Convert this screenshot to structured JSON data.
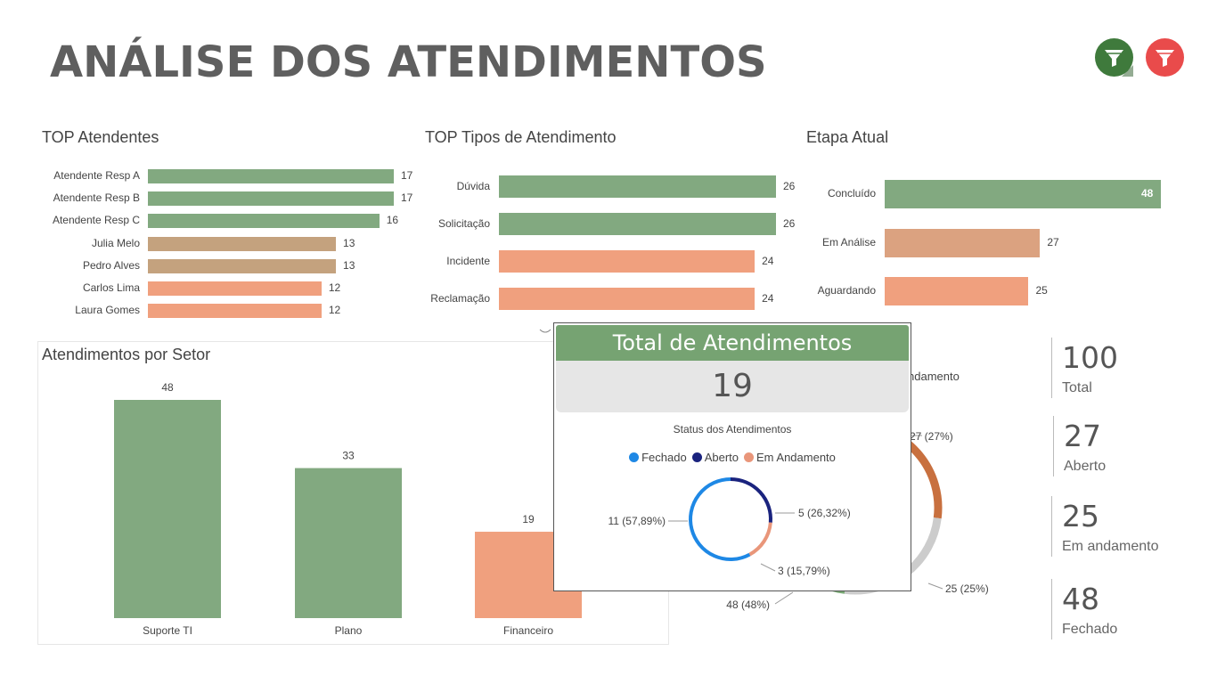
{
  "header": {
    "title": "ANÁLISE DOS ATENDIMENTOS"
  },
  "filters": [
    {
      "icon": "funnel-icon",
      "color": "#3f7a3c"
    },
    {
      "icon": "funnel-x-icon",
      "color": "#e94b4b"
    }
  ],
  "top_atendentes": {
    "title": "TOP Atendentes",
    "chart_data": {
      "type": "bar",
      "title": "TOP Atendentes",
      "categories": [
        "Atendente Resp A",
        "Atendente Resp B",
        "Atendente Resp C",
        "Julia Melo",
        "Pedro Alves",
        "Carlos Lima",
        "Laura Gomes"
      ],
      "values": [
        17,
        17,
        16,
        13,
        13,
        12,
        12
      ],
      "colors": [
        "#82a980",
        "#82a980",
        "#82a980",
        "#c4a27e",
        "#c4a27e",
        "#f0a07e",
        "#f0a07e"
      ]
    }
  },
  "top_tipos": {
    "title": "TOP Tipos de Atendimento",
    "chart_data": {
      "type": "bar",
      "title": "TOP Tipos de Atendimento",
      "categories": [
        "Dúvida",
        "Solicitação",
        "Incidente",
        "Reclamação"
      ],
      "values": [
        26,
        26,
        24,
        24
      ],
      "colors": [
        "#82a980",
        "#82a980",
        "#f0a07e",
        "#f0a07e"
      ]
    }
  },
  "etapa_atual": {
    "title": "Etapa Atual",
    "chart_data": {
      "type": "bar",
      "title": "Etapa Atual",
      "categories": [
        "Concluído",
        "Em Análise",
        "Aguardando"
      ],
      "values": [
        48,
        27,
        25
      ],
      "colors": [
        "#82a980",
        "#dba280",
        "#f0a07e"
      ]
    }
  },
  "por_setor": {
    "title": "Atendimentos por Setor",
    "chart_data": {
      "type": "bar",
      "title": "Atendimentos por Setor",
      "categories": [
        "Suporte TI",
        "Plano",
        "Financeiro"
      ],
      "values": [
        48,
        33,
        19
      ],
      "colors": [
        "#82a980",
        "#82a980",
        "#f0a07e"
      ]
    }
  },
  "status_donut": {
    "hidden_title_fragment": "ndamento",
    "chart_data": {
      "type": "pie",
      "labels": [
        "27 (27%)",
        "25 (25%)",
        "48 (48%)"
      ],
      "values": [
        27,
        25,
        48
      ],
      "colors": [
        "#c8703f",
        "#cccccc",
        "#78a874"
      ]
    }
  },
  "tooltip": {
    "header": "Total de Atendimentos",
    "value": "19",
    "chart_title": "Status dos Atendimentos",
    "chart_data": {
      "type": "pie",
      "title": "Status dos Atendimentos",
      "series": [
        {
          "name": "Fechado",
          "value": 11,
          "label": "11 (57,89%)",
          "color": "#1e88e5"
        },
        {
          "name": "Aberto",
          "value": 5,
          "label": "5 (26,32%)",
          "color": "#1a237e"
        },
        {
          "name": "Em Andamento",
          "value": 3,
          "label": "3 (15,79%)",
          "color": "#e9967a"
        }
      ]
    }
  },
  "kpis": [
    {
      "value": "100",
      "label": "Total"
    },
    {
      "value": "27",
      "label": "Aberto"
    },
    {
      "value": "25",
      "label": "Em andamento"
    },
    {
      "value": "48",
      "label": "Fechado"
    }
  ]
}
